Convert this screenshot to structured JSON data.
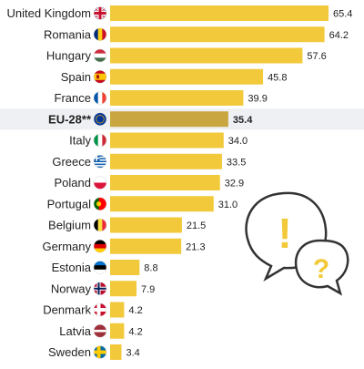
{
  "chart_data": {
    "type": "bar",
    "orientation": "horizontal",
    "title": "",
    "xlabel": "",
    "ylabel": "",
    "xlim": [
      0,
      70
    ],
    "grid": false,
    "legend": "none",
    "categories": [
      "United Kingdom",
      "Romania",
      "Hungary",
      "Spain",
      "France",
      "EU-28**",
      "Italy",
      "Greece",
      "Poland",
      "Portugal",
      "Belgium",
      "Germany",
      "Estonia",
      "Norway",
      "Denmark",
      "Latvia",
      "Sweden"
    ],
    "values": [
      65.4,
      64.2,
      57.6,
      45.8,
      39.9,
      35.4,
      34.0,
      33.5,
      32.9,
      31.0,
      21.5,
      21.3,
      8.8,
      7.9,
      4.2,
      4.2,
      3.4
    ],
    "value_labels": [
      "65.4",
      "64.2",
      "57.6",
      "45.8",
      "39.9",
      "35.4",
      "34.0",
      "33.5",
      "32.9",
      "31.0",
      "21.5",
      "21.3",
      "8.8",
      "7.9",
      "4.2",
      "4.2",
      "3.4"
    ],
    "highlight_category": "EU-28**",
    "flags": [
      "uk-flag",
      "romania-flag",
      "hungary-flag",
      "spain-flag",
      "france-flag",
      "eu-flag",
      "italy-flag",
      "greece-flag",
      "poland-flag",
      "portugal-flag",
      "belgium-flag",
      "germany-flag",
      "estonia-flag",
      "norway-flag",
      "denmark-flag",
      "latvia-flag",
      "sweden-flag"
    ]
  },
  "decoration": {
    "speech_bubble_icons": [
      "exclamation-mark-icon",
      "question-mark-icon"
    ],
    "exclamation_text": "!",
    "question_text": "?"
  },
  "colors": {
    "bar": "#F2C93A",
    "bar_highlight": "#C9A640",
    "highlight_row_bg": "#EEF0F3",
    "bubble_stroke": "#333333",
    "bubble_accent": "#F2C93A",
    "text": "#222222"
  }
}
